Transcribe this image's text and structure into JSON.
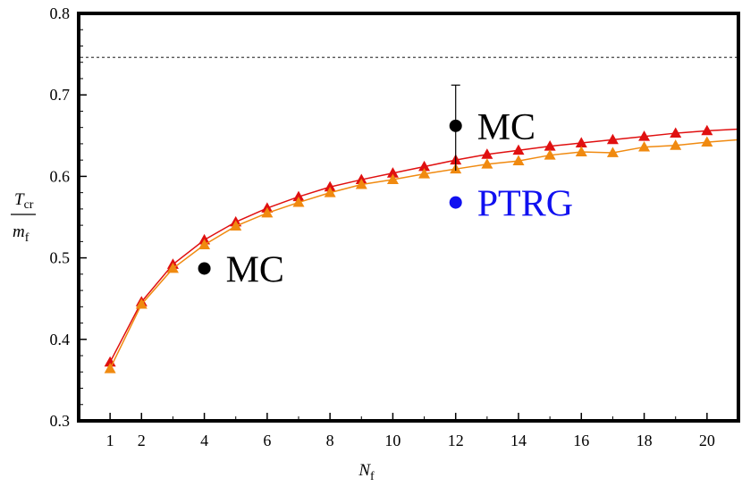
{
  "chart_data": {
    "type": "line",
    "xlabel": "N",
    "xlabel_sub": "f",
    "ylabel_num": "T",
    "ylabel_num_sub": "cr",
    "ylabel_den": "m",
    "ylabel_den_sub": "f",
    "xlim": [
      0,
      21
    ],
    "ylim": [
      0.3,
      0.8
    ],
    "x_ticks": [
      1,
      2,
      4,
      6,
      8,
      10,
      12,
      14,
      16,
      18,
      20
    ],
    "y_ticks": [
      0.3,
      0.4,
      0.5,
      0.6,
      0.7,
      0.8
    ],
    "y_tick_labels": [
      "0.3",
      "0.4",
      "0.5",
      "0.6",
      "0.7",
      "0.8"
    ],
    "grid": false,
    "reference_line": {
      "y": 0.746,
      "style": "dotted"
    },
    "series": [
      {
        "color": "#e01010",
        "marker": "triangle",
        "x": [
          1,
          2,
          3,
          4,
          5,
          6,
          7,
          8,
          9,
          10,
          11,
          12,
          13,
          14,
          15,
          16,
          17,
          18,
          19,
          20
        ],
        "values": [
          0.372,
          0.446,
          0.492,
          0.522,
          0.544,
          0.561,
          0.575,
          0.587,
          0.596,
          0.604,
          0.612,
          0.62,
          0.627,
          0.632,
          0.637,
          0.641,
          0.645,
          0.649,
          0.653,
          0.656
        ],
        "curve_end": {
          "x": 21,
          "y": 0.658
        }
      },
      {
        "color": "#f08a10",
        "marker": "triangle",
        "x": [
          1,
          2,
          3,
          4,
          5,
          6,
          7,
          8,
          9,
          10,
          11,
          12,
          13,
          14,
          15,
          16,
          17,
          18,
          19,
          20
        ],
        "values": [
          0.364,
          0.443,
          0.487,
          0.516,
          0.539,
          0.555,
          0.568,
          0.58,
          0.59,
          0.596,
          0.603,
          0.609,
          0.615,
          0.619,
          0.626,
          0.63,
          0.629,
          0.636,
          0.638,
          0.642
        ],
        "curve_end": {
          "x": 21,
          "y": 0.645
        }
      }
    ],
    "points": [
      {
        "label": "MC",
        "x": 4,
        "y": 0.487,
        "color": "#000000"
      },
      {
        "label": "MC",
        "x": 12,
        "y": 0.662,
        "err_low": 0.607,
        "err_high": 0.712,
        "color": "#000000"
      },
      {
        "label": "PTRG",
        "x": 12,
        "y": 0.568,
        "color": "#1010f0"
      }
    ]
  }
}
